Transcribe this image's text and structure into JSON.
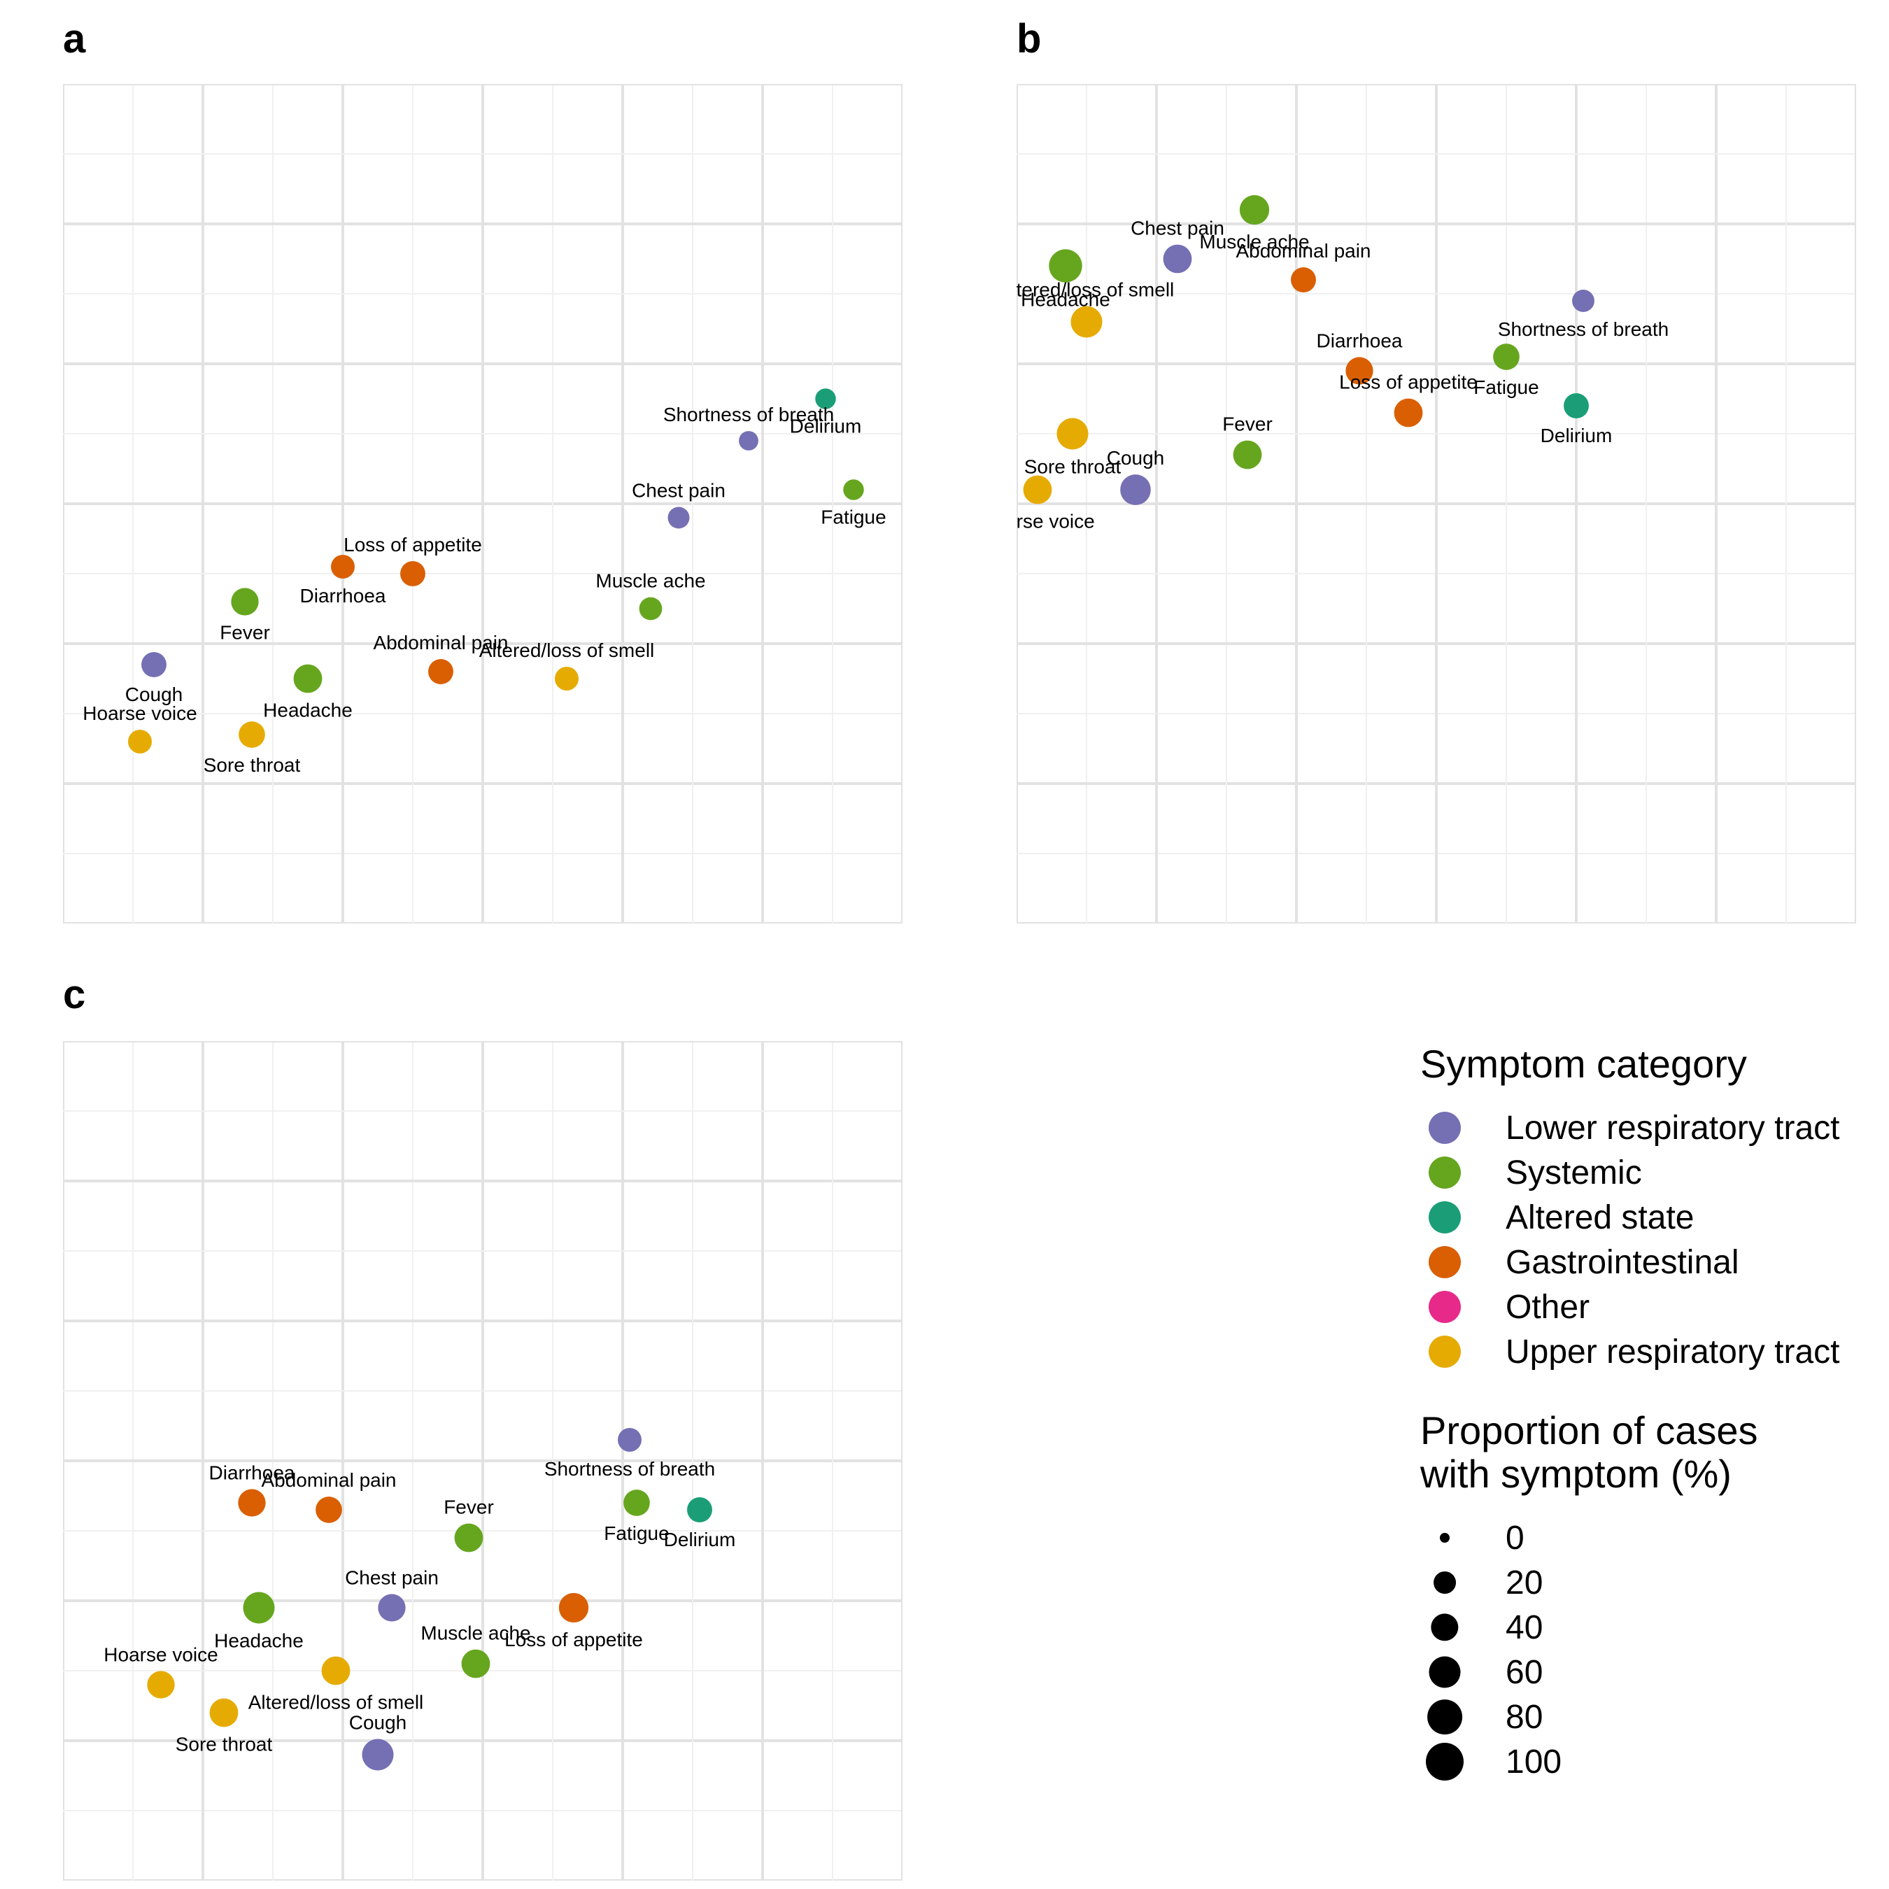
{
  "panels": [
    {
      "letter": "a"
    },
    {
      "letter": "b"
    },
    {
      "letter": "c"
    }
  ],
  "legend": {
    "color_title": "Symptom category",
    "size_title_line1": "Proportion of cases",
    "size_title_line2": "with symptom (%)",
    "categories": [
      {
        "label": "Lower respiratory tract",
        "color": "#7570B3"
      },
      {
        "label": "Systemic",
        "color": "#66A61E"
      },
      {
        "label": "Altered state",
        "color": "#1B9E77"
      },
      {
        "label": "Gastrointestinal",
        "color": "#D95F02"
      },
      {
        "label": "Other",
        "color": "#E7298A"
      },
      {
        "label": "Upper respiratory tract",
        "color": "#E6AB02"
      }
    ],
    "sizes": [
      {
        "label": "0",
        "value": 0
      },
      {
        "label": "20",
        "value": 20
      },
      {
        "label": "40",
        "value": 40
      },
      {
        "label": "60",
        "value": 60
      },
      {
        "label": "80",
        "value": 80
      },
      {
        "label": "100",
        "value": 100
      }
    ]
  },
  "chart_data": [
    {
      "type": "scatter",
      "panel": "a",
      "title": "",
      "xlabel": "",
      "ylabel": "",
      "xlim": [
        0,
        12
      ],
      "ylim": [
        0,
        12
      ],
      "grid": true,
      "points": [
        {
          "label": "Delirium",
          "category": "Altered state",
          "x": 10.9,
          "y": 7.5,
          "proportion": 15
        },
        {
          "label": "Shortness of breath",
          "category": "Lower respiratory tract",
          "x": 9.8,
          "y": 6.9,
          "proportion": 12
        },
        {
          "label": "Fatigue",
          "category": "Systemic",
          "x": 11.3,
          "y": 6.2,
          "proportion": 15
        },
        {
          "label": "Chest pain",
          "category": "Lower respiratory tract",
          "x": 8.8,
          "y": 5.8,
          "proportion": 18
        },
        {
          "label": "Diarrhoea",
          "category": "Gastrointestinal",
          "x": 4.0,
          "y": 5.1,
          "proportion": 25
        },
        {
          "label": "Loss of appetite",
          "category": "Gastrointestinal",
          "x": 5.0,
          "y": 5.0,
          "proportion": 30
        },
        {
          "label": "Fever",
          "category": "Systemic",
          "x": 2.6,
          "y": 4.6,
          "proportion": 40
        },
        {
          "label": "Muscle ache",
          "category": "Systemic",
          "x": 8.4,
          "y": 4.5,
          "proportion": 22
        },
        {
          "label": "Cough",
          "category": "Lower respiratory tract",
          "x": 1.3,
          "y": 3.7,
          "proportion": 30
        },
        {
          "label": "Abdominal pain",
          "category": "Gastrointestinal",
          "x": 5.4,
          "y": 3.6,
          "proportion": 30
        },
        {
          "label": "Headache",
          "category": "Systemic",
          "x": 3.5,
          "y": 3.5,
          "proportion": 45
        },
        {
          "label": "Altered/loss of smell",
          "category": "Upper respiratory tract",
          "x": 7.2,
          "y": 3.5,
          "proportion": 25
        },
        {
          "label": "Sore throat",
          "category": "Upper respiratory tract",
          "x": 2.7,
          "y": 2.7,
          "proportion": 35
        },
        {
          "label": "Hoarse voice",
          "category": "Upper respiratory tract",
          "x": 1.1,
          "y": 2.6,
          "proportion": 25
        }
      ]
    },
    {
      "type": "scatter",
      "panel": "b",
      "title": "",
      "xlabel": "",
      "ylabel": "",
      "xlim": [
        0,
        12
      ],
      "ylim": [
        0,
        12
      ],
      "grid": true,
      "points": [
        {
          "label": "Muscle ache",
          "category": "Systemic",
          "x": 3.4,
          "y": 10.2,
          "proportion": 50
        },
        {
          "label": "Chest pain",
          "category": "Lower respiratory tract",
          "x": 2.3,
          "y": 9.5,
          "proportion": 45
        },
        {
          "label": "Headache",
          "category": "Systemic",
          "x": 0.7,
          "y": 9.4,
          "proportion": 70
        },
        {
          "label": "Abdominal pain",
          "category": "Gastrointestinal",
          "x": 4.1,
          "y": 9.2,
          "proportion": 30
        },
        {
          "label": "Shortness of breath",
          "category": "Lower respiratory tract",
          "x": 8.1,
          "y": 8.9,
          "proportion": 20
        },
        {
          "label": "Altered/loss of smell",
          "category": "Upper respiratory tract",
          "x": 1.0,
          "y": 8.6,
          "proportion": 60
        },
        {
          "label": "Fatigue",
          "category": "Systemic",
          "x": 7.0,
          "y": 8.1,
          "proportion": 35
        },
        {
          "label": "Diarrhoea",
          "category": "Gastrointestinal",
          "x": 4.9,
          "y": 7.9,
          "proportion": 40
        },
        {
          "label": "Sore throat",
          "category": "Upper respiratory tract",
          "x": 0.8,
          "y": 7.0,
          "proportion": 60
        },
        {
          "label": "Loss of appetite",
          "category": "Gastrointestinal",
          "x": 5.6,
          "y": 7.3,
          "proportion": 45
        },
        {
          "label": "Delirium",
          "category": "Altered state",
          "x": 8.0,
          "y": 7.4,
          "proportion": 30
        },
        {
          "label": "Fever",
          "category": "Systemic",
          "x": 3.3,
          "y": 6.7,
          "proportion": 45
        },
        {
          "label": "Hoarse voice",
          "category": "Upper respiratory tract",
          "x": 0.3,
          "y": 6.2,
          "proportion": 45
        },
        {
          "label": "Cough",
          "category": "Lower respiratory tract",
          "x": 1.7,
          "y": 6.2,
          "proportion": 55
        }
      ]
    },
    {
      "type": "scatter",
      "panel": "c",
      "title": "",
      "xlabel": "",
      "ylabel": "",
      "xlim": [
        0,
        12
      ],
      "ylim": [
        0,
        12
      ],
      "grid": true,
      "points": [
        {
          "label": "Shortness of breath",
          "category": "Lower respiratory tract",
          "x": 8.1,
          "y": 6.3,
          "proportion": 25
        },
        {
          "label": "Diarrhoea",
          "category": "Gastrointestinal",
          "x": 2.7,
          "y": 5.4,
          "proportion": 40
        },
        {
          "label": "Fatigue",
          "category": "Systemic",
          "x": 8.2,
          "y": 5.4,
          "proportion": 35
        },
        {
          "label": "Abdominal pain",
          "category": "Gastrointestinal",
          "x": 3.8,
          "y": 5.3,
          "proportion": 35
        },
        {
          "label": "Delirium",
          "category": "Altered state",
          "x": 9.1,
          "y": 5.3,
          "proportion": 30
        },
        {
          "label": "Fever",
          "category": "Systemic",
          "x": 5.8,
          "y": 4.9,
          "proportion": 45
        },
        {
          "label": "Headache",
          "category": "Systemic",
          "x": 2.8,
          "y": 3.9,
          "proportion": 60
        },
        {
          "label": "Chest pain",
          "category": "Lower respiratory tract",
          "x": 4.7,
          "y": 3.9,
          "proportion": 40
        },
        {
          "label": "Loss of appetite",
          "category": "Gastrointestinal",
          "x": 7.3,
          "y": 3.9,
          "proportion": 50
        },
        {
          "label": "Muscle ache",
          "category": "Systemic",
          "x": 5.9,
          "y": 3.1,
          "proportion": 45
        },
        {
          "label": "Altered/loss of smell",
          "category": "Upper respiratory tract",
          "x": 3.9,
          "y": 3.0,
          "proportion": 45
        },
        {
          "label": "Hoarse voice",
          "category": "Upper respiratory tract",
          "x": 1.4,
          "y": 2.8,
          "proportion": 40
        },
        {
          "label": "Sore throat",
          "category": "Upper respiratory tract",
          "x": 2.3,
          "y": 2.4,
          "proportion": 45
        },
        {
          "label": "Cough",
          "category": "Lower respiratory tract",
          "x": 4.5,
          "y": 1.8,
          "proportion": 60
        }
      ]
    }
  ]
}
